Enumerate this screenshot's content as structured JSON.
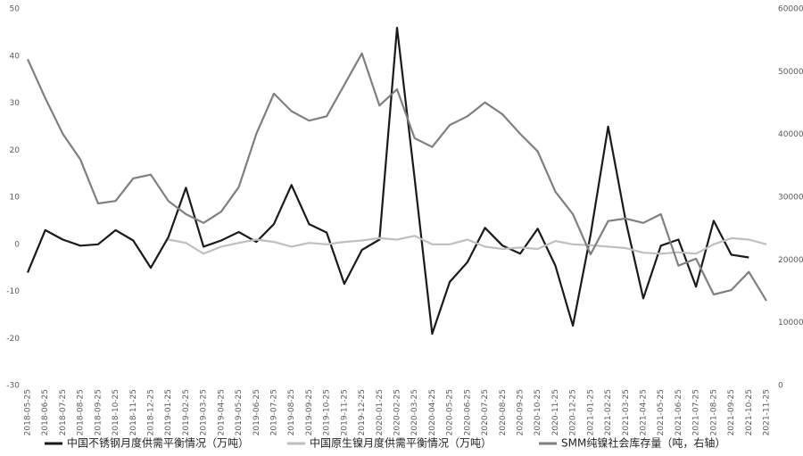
{
  "chart_data": {
    "type": "line",
    "categories": [
      "2018-05-25",
      "2018-06-25",
      "2018-07-25",
      "2018-08-25",
      "2018-09-25",
      "2018-10-25",
      "2018-11-25",
      "2018-12-25",
      "2019-01-25",
      "2019-02-25",
      "2019-03-25",
      "2019-04-25",
      "2019-05-25",
      "2019-06-25",
      "2019-07-25",
      "2019-08-25",
      "2019-09-25",
      "2019-10-25",
      "2019-11-25",
      "2019-12-25",
      "2020-01-25",
      "2020-02-25",
      "2020-03-25",
      "2020-04-25",
      "2020-05-25",
      "2020-06-25",
      "2020-07-25",
      "2020-08-25",
      "2020-09-25",
      "2020-10-25",
      "2020-11-25",
      "2020-12-25",
      "2021-01-25",
      "2021-02-25",
      "2021-03-25",
      "2021-04-25",
      "2021-05-25",
      "2021-06-25",
      "2021-07-25",
      "2021-08-25",
      "2021-09-25",
      "2021-10-25",
      "2021-11-25"
    ],
    "series": [
      {
        "name": "中国不锈钢月度供需平衡情况（万吨）",
        "color": "#1a1a1a",
        "width": 2.2,
        "values": [
          -6,
          3,
          1,
          -0.3,
          0,
          3,
          0.8,
          -5,
          1.5,
          12,
          -0.5,
          0.8,
          2.6,
          0.5,
          4.3,
          12.6,
          4.3,
          2.5,
          -8.4,
          -1.2,
          1,
          46,
          14,
          -19,
          -8,
          -3.8,
          3.5,
          -0.3,
          -2,
          3.3,
          -4.5,
          -17.3,
          2,
          25,
          5,
          -11.5,
          -0.3,
          1,
          -9,
          5,
          -2.2,
          -2.8,
          null
        ]
      },
      {
        "name": "中国原生镍月度供需平衡情况（万吨）",
        "color": "#bfbfbf",
        "width": 2.2,
        "values": [
          null,
          null,
          null,
          null,
          null,
          null,
          null,
          null,
          1,
          0.3,
          -2,
          -0.5,
          0.3,
          1,
          0.5,
          -0.5,
          0.3,
          0,
          0.5,
          0.8,
          1.3,
          1,
          1.8,
          0,
          0,
          1,
          -0.5,
          -1,
          -0.7,
          -1,
          0.7,
          0,
          -0.2,
          -0.5,
          -0.8,
          -1.8,
          -2,
          -1.7,
          -2,
          0,
          1.3,
          1,
          0
        ]
      },
      {
        "name": "SMM纯镍社会库存量（吨，右轴）",
        "color": "#7f7f7f",
        "width": 2.2,
        "axis": "y2",
        "values": [
          52000,
          45800,
          40100,
          36000,
          29000,
          29400,
          33000,
          33600,
          29400,
          27300,
          25900,
          27700,
          31600,
          40100,
          46500,
          43700,
          42200,
          42900,
          47900,
          52900,
          44600,
          47200,
          39400,
          38000,
          41500,
          42900,
          45100,
          43200,
          40100,
          37300,
          30900,
          27300,
          20900,
          26200,
          26600,
          25900,
          27300,
          19100,
          20200,
          14500,
          15200,
          18100,
          13500
        ]
      }
    ],
    "ylim": [
      -30,
      50
    ],
    "yticks": [
      -30,
      -20,
      -10,
      0,
      10,
      20,
      30,
      40,
      50
    ],
    "y2lim": [
      0,
      60000
    ],
    "y2ticks": [
      0,
      10000,
      20000,
      30000,
      40000,
      50000,
      60000
    ],
    "grid": false
  }
}
